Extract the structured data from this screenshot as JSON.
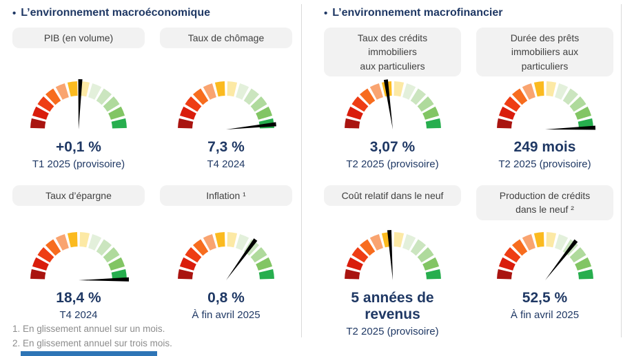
{
  "colors": {
    "title_text": "#1f3864",
    "value_text": "#1f3864",
    "pill_bg": "#f2f2f2",
    "pill_text": "#404040",
    "footnote_text": "#8c8c8c",
    "divider": "#d9d9d9",
    "footer_bar": "#2e75b6",
    "needle": "#000000"
  },
  "bullet": "•",
  "gauge": {
    "segment_count": 12,
    "segment_colors": [
      "#a91410",
      "#d91d0c",
      "#ee3d14",
      "#f76c1e",
      "#f9a470",
      "#fbba1f",
      "#fce9a5",
      "#e3f0db",
      "#cbe5bf",
      "#afda9c",
      "#82c564",
      "#27ae4e"
    ]
  },
  "sections": [
    {
      "title": "L’environnement macroéconomique",
      "gauges": [
        {
          "label": "PIB (en volume)",
          "value": "+0,1 %",
          "period": "T1 2025 (provisoire)",
          "needle_deg": 2
        },
        {
          "label": "Taux de chômage",
          "value": "7,3 %",
          "period": "T4 2024",
          "needle_deg": 84
        },
        {
          "label": "Taux d’épargne",
          "value": "18,4 %",
          "period": "T4 2024",
          "needle_deg": 89
        },
        {
          "label": "Inflation ¹",
          "value": "0,8 %",
          "period": "À fin avril 2025",
          "needle_deg": 36
        }
      ]
    },
    {
      "title": "L’environnement macrofinancier",
      "gauges": [
        {
          "label": "Taux des crédits\nimmobiliers\naux particuliers",
          "value": "3,07 %",
          "period": "T2 2025 (provisoire)",
          "needle_deg": -8
        },
        {
          "label": "Durée des prêts\nimmobiliers aux\nparticuliers",
          "value": "249 mois",
          "period": "T2 2025 (provisoire)",
          "needle_deg": 88
        },
        {
          "label": "Coût relatif dans le neuf",
          "value": "5 années de\nrevenus",
          "period": "T2 2025 (provisoire)",
          "needle_deg": -4
        },
        {
          "label": "Production de crédits\ndans le neuf ²",
          "value": "52,5 %",
          "period": "À fin avril 2025",
          "needle_deg": 38
        }
      ]
    }
  ],
  "footnotes": [
    "1. En glissement annuel sur un mois.",
    "2. En glissement annuel sur trois mois."
  ]
}
